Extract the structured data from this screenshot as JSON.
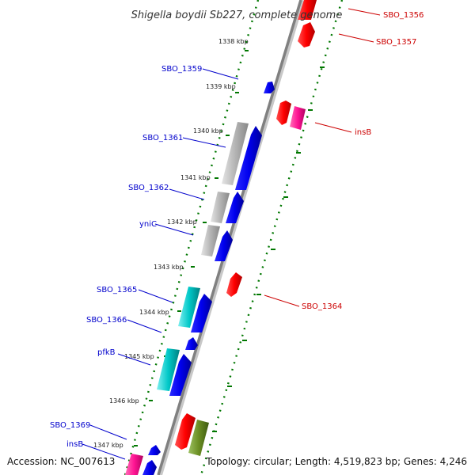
{
  "title": "Shigella boydii Sb227, complete genome",
  "footer": {
    "accession": "Accession: NC_007613",
    "summary": "Topology: circular; Length: 4,519,823 bp; Genes: 4,246"
  },
  "ticks": [
    "1338 kbp",
    "1339 kbp",
    "1340 kbp",
    "1341 kbp",
    "1342 kbp",
    "1343 kbp",
    "1344 kbp",
    "1345 kbp",
    "1346 kbp",
    "1347 kbp"
  ],
  "left_labels": [
    "SBO_1359",
    "SBO_1361",
    "SBO_1362",
    "yniC",
    "SBO_1365",
    "SBO_1366",
    "pfkB",
    "SBO_1369",
    "insB"
  ],
  "right_labels": [
    "SBO_1356",
    "SBO_1357",
    "insB",
    "SBO_1364"
  ],
  "colors": {
    "backbone": "#808080",
    "forward_cds": "#0000ff",
    "reverse_cds": "#ff0000",
    "insertion": "#ff1493",
    "gray_feature": "#b0b0b0",
    "cyan_feature": "#00b8b8",
    "olive_feature": "#6b8e23",
    "left_label": "#0000cc",
    "right_label": "#cc0000",
    "ruler": "#007700"
  }
}
